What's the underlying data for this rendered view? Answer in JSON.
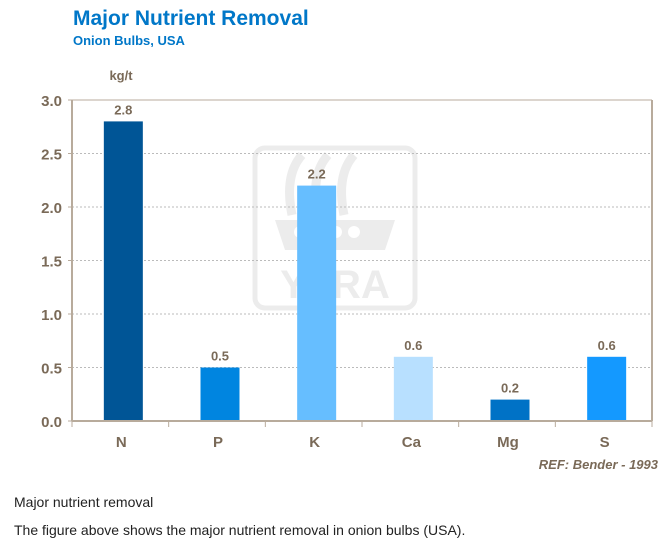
{
  "chart_data": {
    "type": "bar",
    "title": "Major Nutrient Removal",
    "subtitle": "Onion Bulbs, USA",
    "ylabel": "kg/t",
    "xlabel": "",
    "categories": [
      "N",
      "P",
      "K",
      "Ca",
      "Mg",
      "S"
    ],
    "values": [
      2.8,
      0.5,
      2.2,
      0.6,
      0.2,
      0.6
    ],
    "value_labels": [
      "2.8",
      "0.5",
      "2.2",
      "0.6",
      "0.2",
      "0.6"
    ],
    "colors": [
      "#005596",
      "#0085e0",
      "#66beff",
      "#b8e0ff",
      "#0072c6",
      "#1499ff"
    ],
    "ylim": [
      0,
      3.0
    ],
    "yticks": [
      "0.0",
      "0.5",
      "1.0",
      "1.5",
      "2.0",
      "2.5",
      "3.0"
    ],
    "grid": true,
    "reference": "REF: Bender - 1993",
    "watermark": "YARA"
  },
  "caption": {
    "title": "Major nutrient removal",
    "text": "The figure above shows the major nutrient removal in onion bulbs (USA)."
  }
}
